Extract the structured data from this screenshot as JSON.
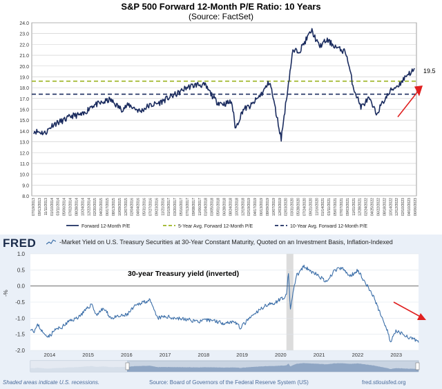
{
  "chart_data": [
    {
      "type": "line",
      "title": "S&P 500 Forward 12-Month P/E Ratio: 10 Years",
      "subtitle": "(Source: FactSet)",
      "ylim": [
        8.0,
        24.0
      ],
      "yticks": [
        "24.0",
        "23.0",
        "22.0",
        "21.0",
        "20.0",
        "19.0",
        "18.0",
        "17.0",
        "16.0",
        "15.0",
        "14.0",
        "13.0",
        "12.0",
        "11.0",
        "10.0",
        "9.0",
        "8.0"
      ],
      "xticks": [
        "07/19/2013",
        "09/13/2013",
        "11/11/2013",
        "01/10/2014",
        "03/11/2014",
        "05/06/2014",
        "07/02/2014",
        "08/28/2014",
        "10/24/2014",
        "12/22/2014",
        "02/20/2015",
        "04/21/2015",
        "06/17/2015",
        "08/13/2015",
        "10/09/2015",
        "12/07/2015",
        "02/04/2016",
        "04/04/2016",
        "05/31/2016",
        "07/27/2016",
        "09/23/2016",
        "11/21/2016",
        "01/19/2017",
        "03/20/2017",
        "05/16/2017",
        "07/13/2017",
        "09/08/2017",
        "11/06/2017",
        "01/04/2018",
        "03/05/2018",
        "05/01/2018",
        "06/28/2018",
        "08/24/2018",
        "10/22/2018",
        "12/19/2018",
        "02/19/2019",
        "04/17/2019",
        "06/13/2019",
        "08/09/2019",
        "10/07/2019",
        "12/03/2019",
        "02/03/2020",
        "03/31/2020",
        "05/28/2020",
        "07/24/2020",
        "09/21/2020",
        "11/16/2020",
        "01/14/2021",
        "03/11/2021",
        "05/07/2021",
        "07/07/2021",
        "09/03/2021",
        "11/01/2021",
        "12/28/2021",
        "02/24/2022",
        "04/25/2022",
        "06/22/2022",
        "08/18/2022",
        "10/14/2022",
        "12/12/2022",
        "02/10/2023",
        "04/10/2023",
        "06/06/2023"
      ],
      "series": [
        {
          "name": "Forward 12-Month P/E",
          "color": "#1a2b5e",
          "x": [
            0,
            0.03,
            0.05,
            0.08,
            0.1,
            0.13,
            0.15,
            0.18,
            0.2,
            0.23,
            0.25,
            0.28,
            0.3,
            0.33,
            0.35,
            0.38,
            0.4,
            0.43,
            0.45,
            0.48,
            0.5,
            0.52,
            0.53,
            0.55,
            0.57,
            0.6,
            0.62,
            0.65,
            0.68,
            0.7,
            0.73,
            0.75,
            0.77,
            0.8,
            0.82,
            0.84,
            0.86,
            0.88,
            0.9,
            0.92,
            0.94,
            0.96,
            0.97,
            0.98,
            1.0
          ],
          "values": [
            14.0,
            13.8,
            14.6,
            15.0,
            15.4,
            15.5,
            16.3,
            16.6,
            16.9,
            16.0,
            16.4,
            15.8,
            16.3,
            16.6,
            17.0,
            17.5,
            18.0,
            18.3,
            18.2,
            16.7,
            16.5,
            16.7,
            14.2,
            16.0,
            16.3,
            17.5,
            18.6,
            13.3,
            21.3,
            21.5,
            23.3,
            21.8,
            22.4,
            21.6,
            21.3,
            18.0,
            16.2,
            17.0,
            15.6,
            16.8,
            17.8,
            18.3,
            18.7,
            19.2,
            19.6
          ]
        },
        {
          "name": "5-Year Avg. Forward 12-Month P/E",
          "color": "#9ab31e",
          "value": 18.6
        },
        {
          "name": "10-Year Avg. Forward 12-Month P/E",
          "color": "#1a2b5e",
          "value": 17.4
        }
      ],
      "annotation": "19.5",
      "legend": [
        "Forward 12-Month P/E",
        "5-Year Avg. Forward 12-Month P/E",
        "10-Year Avg. Forward 12-Month P/E"
      ]
    },
    {
      "type": "line",
      "title": "-Market Yield on U.S. Treasury Securities at 30-Year Constant Maturity, Quoted on an Investment Basis, Inflation-Indexed",
      "annotation": "30-year Treasury yield (inverted)",
      "ylabel": "-%",
      "ylim": [
        -2.0,
        1.0
      ],
      "yticks": [
        "1.0",
        "0.5",
        "0.0",
        "-0.5",
        "-1.0",
        "-1.5",
        "-2.0"
      ],
      "xticks": [
        "2014",
        "2015",
        "2016",
        "2017",
        "2018",
        "2019",
        "2020",
        "2021",
        "2022",
        "2023"
      ],
      "recession": [
        2020.15,
        2020.33
      ],
      "series": [
        {
          "name": "-Market Yield on U.S. Treasury Securities at 30-Year Constant Maturity",
          "color": "#3b6ea8",
          "x": [
            2013.5,
            2013.6,
            2013.7,
            2013.85,
            2014.0,
            2014.15,
            2014.3,
            2014.5,
            2014.7,
            2014.9,
            2015.1,
            2015.2,
            2015.4,
            2015.6,
            2015.8,
            2016.0,
            2016.2,
            2016.4,
            2016.6,
            2016.8,
            2017.0,
            2017.3,
            2017.6,
            2017.9,
            2018.2,
            2018.5,
            2018.8,
            2018.95,
            2019.2,
            2019.4,
            2019.6,
            2019.8,
            2020.0,
            2020.15,
            2020.2,
            2020.25,
            2020.4,
            2020.6,
            2020.8,
            2021.0,
            2021.2,
            2021.4,
            2021.6,
            2021.8,
            2022.0,
            2022.2,
            2022.4,
            2022.6,
            2022.75,
            2022.85,
            2023.0,
            2023.2,
            2023.4,
            2023.55
          ],
          "values": [
            -1.3,
            -1.4,
            -1.2,
            -1.5,
            -1.55,
            -1.35,
            -1.3,
            -1.1,
            -1.0,
            -0.8,
            -0.55,
            -0.9,
            -0.7,
            -1.0,
            -0.95,
            -0.9,
            -0.65,
            -0.5,
            -0.45,
            -1.0,
            -0.95,
            -1.0,
            -1.05,
            -1.1,
            -1.05,
            -1.15,
            -1.1,
            -1.3,
            -1.0,
            -0.8,
            -0.6,
            -0.55,
            -0.4,
            -0.3,
            0.4,
            -0.7,
            0.3,
            0.6,
            0.45,
            0.3,
            0.1,
            0.5,
            0.55,
            0.3,
            0.5,
            0.1,
            -0.3,
            -0.9,
            -1.3,
            -1.75,
            -1.4,
            -1.5,
            -1.65,
            -1.7
          ]
        }
      ],
      "logo": "FRED",
      "footnote": "Shaded areas indicate U.S. recessions.",
      "source": "Source: Board of Governors of the Federal Reserve System (US)",
      "url": "fred.stlouisfed.org"
    }
  ]
}
